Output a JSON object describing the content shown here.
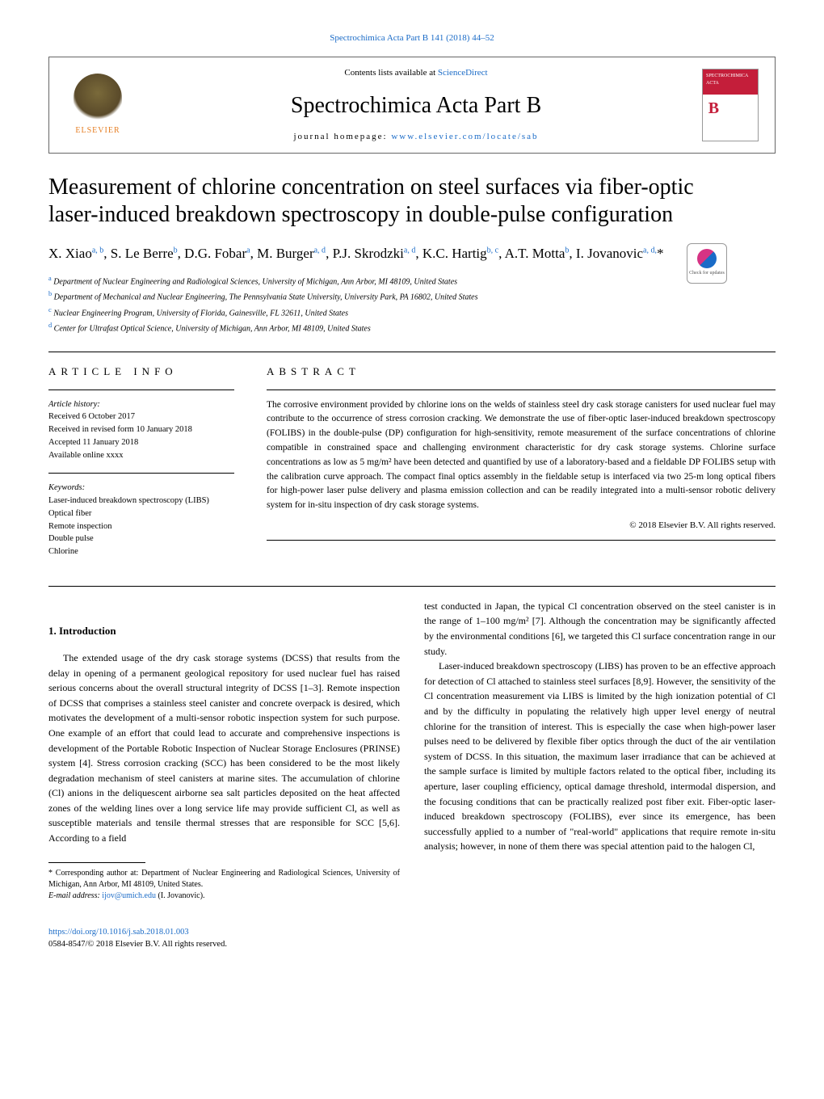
{
  "top_ref": "Spectrochimica Acta Part B 141 (2018) 44–52",
  "header": {
    "elsevier": "ELSEVIER",
    "contents_prefix": "Contents lists available at ",
    "contents_link": "ScienceDirect",
    "journal": "Spectrochimica Acta Part B",
    "homepage_prefix": "journal homepage: ",
    "homepage_link": "www.elsevier.com/locate/sab",
    "cover_label": "SPECTROCHIMICA ACTA"
  },
  "title": "Measurement of chlorine concentration on steel surfaces via fiber-optic laser-induced breakdown spectroscopy in double-pulse configuration",
  "check_badge": "Check for updates",
  "authors_html": "X. Xiao<sup>a, b</sup>, S. Le Berre<sup>b</sup>, D.G. Fobar<sup>a</sup>, M. Burger<sup>a, d</sup>, P.J. Skrodzki<sup>a, d</sup>, K.C. Hartig<sup>b, c</sup>, A.T. Motta<sup>b</sup>, I. Jovanovic<sup>a, d,</sup>*",
  "affiliations": {
    "a": "Department of Nuclear Engineering and Radiological Sciences, University of Michigan, Ann Arbor, MI 48109, United States",
    "b": "Department of Mechanical and Nuclear Engineering, The Pennsylvania State University, University Park, PA 16802, United States",
    "c": "Nuclear Engineering Program, University of Florida, Gainesville, FL 32611, United States",
    "d": "Center for Ultrafast Optical Science, University of Michigan, Ann Arbor, MI 48109, United States"
  },
  "info": {
    "head": "ARTICLE INFO",
    "history_label": "Article history:",
    "received": "Received 6 October 2017",
    "revised": "Received in revised form 10 January 2018",
    "accepted": "Accepted 11 January 2018",
    "online": "Available online xxxx",
    "keywords_label": "Keywords:",
    "keywords": [
      "Laser-induced breakdown spectroscopy (LIBS)",
      "Optical fiber",
      "Remote inspection",
      "Double pulse",
      "Chlorine"
    ]
  },
  "abstract": {
    "head": "ABSTRACT",
    "text": "The corrosive environment provided by chlorine ions on the welds of stainless steel dry cask storage canisters for used nuclear fuel may contribute to the occurrence of stress corrosion cracking. We demonstrate the use of fiber-optic laser-induced breakdown spectroscopy (FOLIBS) in the double-pulse (DP) configuration for high-sensitivity, remote measurement of the surface concentrations of chlorine compatible in constrained space and challenging environment characteristic for dry cask storage systems. Chlorine surface concentrations as low as 5 mg/m² have been detected and quantified by use of a laboratory-based and a fieldable DP FOLIBS setup with the calibration curve approach. The compact final optics assembly in the fieldable setup is interfaced via two 25-m long optical fibers for high-power laser pulse delivery and plasma emission collection and can be readily integrated into a multi-sensor robotic delivery system for in-situ inspection of dry cask storage systems.",
    "copyright": "© 2018 Elsevier B.V. All rights reserved."
  },
  "intro": {
    "head": "1. Introduction",
    "p1": "The extended usage of the dry cask storage systems (DCSS) that results from the delay in opening of a permanent geological repository for used nuclear fuel has raised serious concerns about the overall structural integrity of DCSS [1–3]. Remote inspection of DCSS that comprises a stainless steel canister and concrete overpack is desired, which motivates the development of a multi-sensor robotic inspection system for such purpose. One example of an effort that could lead to accurate and comprehensive inspections is development of the Portable Robotic Inspection of Nuclear Storage Enclosures (PRINSE) system [4]. Stress corrosion cracking (SCC) has been considered to be the most likely degradation mechanism of steel canisters at marine sites. The accumulation of chlorine (Cl) anions in the deliquescent airborne sea salt particles deposited on the heat affected zones of the welding lines over a long service life may provide sufficient Cl, as well as susceptible materials and tensile thermal stresses that are responsible for SCC [5,6]. According to a field",
    "p2": "test conducted in Japan, the typical Cl concentration observed on the steel canister is in the range of 1–100 mg/m² [7]. Although the concentration may be significantly affected by the environmental conditions [6], we targeted this Cl surface concentration range in our study.",
    "p3": "Laser-induced breakdown spectroscopy (LIBS) has proven to be an effective approach for detection of Cl attached to stainless steel surfaces [8,9]. However, the sensitivity of the Cl concentration measurement via LIBS is limited by the high ionization potential of Cl and by the difficulty in populating the relatively high upper level energy of neutral chlorine for the transition of interest. This is especially the case when high-power laser pulses need to be delivered by flexible fiber optics through the duct of the air ventilation system of DCSS. In this situation, the maximum laser irradiance that can be achieved at the sample surface is limited by multiple factors related to the optical fiber, including its aperture, laser coupling efficiency, optical damage threshold, intermodal dispersion, and the focusing conditions that can be practically realized post fiber exit. Fiber-optic laser-induced breakdown spectroscopy (FOLIBS), ever since its emergence, has been successfully applied to a number of \"real-world\" applications that require remote in-situ analysis; however, in none of them there was special attention paid to the halogen Cl,"
  },
  "footnote": {
    "corr": "* Corresponding author at: Department of Nuclear Engineering and Radiological Sciences, University of Michigan, Ann Arbor, MI 48109, United States.",
    "email_label": "E-mail address: ",
    "email": "ijov@umich.edu",
    "email_suffix": " (I. Jovanovic)."
  },
  "bottom": {
    "doi": "https://doi.org/10.1016/j.sab.2018.01.003",
    "issn": "0584-8547/© 2018 Elsevier B.V. All rights reserved."
  },
  "colors": {
    "link": "#1a6bc7",
    "elsevier_orange": "#e67e22",
    "cover_red": "#c41e3a",
    "text": "#000000",
    "background": "#ffffff"
  }
}
